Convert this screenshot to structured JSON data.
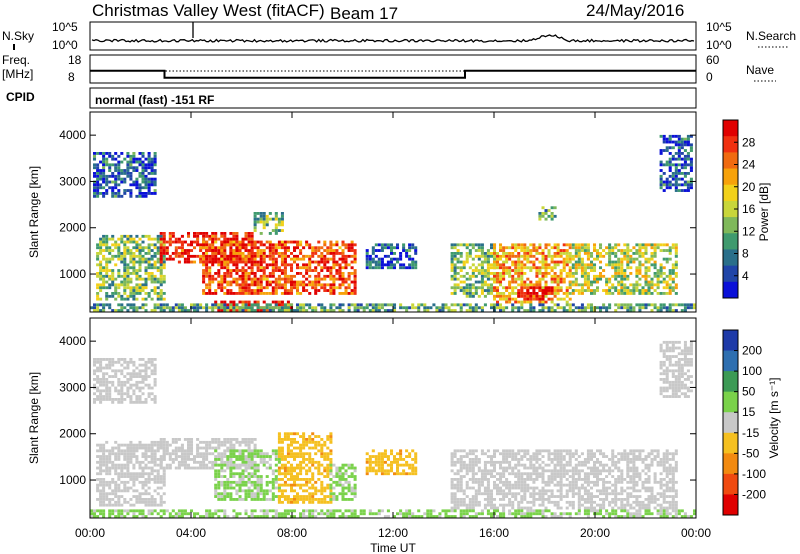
{
  "header": {
    "title": "Christmas Valley West (fitACF)",
    "beam": "Beam 17",
    "date": "24/May/2016"
  },
  "status_panels": {
    "nsky_label": "N.Sky",
    "nsky_ticks": [
      "10^5",
      "10^0"
    ],
    "nsearch_label": "N.Search",
    "freq_label_line1": "Freq.",
    "freq_label_line2": "[MHz]",
    "freq_ticks": [
      "18",
      "8"
    ],
    "nave_ticks": [
      "60",
      "0"
    ],
    "nave_label": "Nave",
    "cpid_label": "CPID",
    "cpid_text": "normal (fast) -151 RF"
  },
  "chart_data": [
    {
      "type": "heatmap",
      "panel": "power",
      "ylabel": "Slant Range [km]",
      "yticks": [
        1000,
        2000,
        3000,
        4000
      ],
      "ylim": [
        180,
        4500
      ],
      "xlim": [
        0,
        24
      ],
      "colorbar": {
        "label": "Power [dB]",
        "ticks": [
          "28",
          "24",
          "20",
          "16",
          "12",
          "8",
          "4"
        ],
        "colors": [
          "#e00000",
          "#f03010",
          "#f06a10",
          "#f7a20a",
          "#f2d11a",
          "#c8d63a",
          "#7fb85a",
          "#3f9a6e",
          "#2a6f8a",
          "#2045a8",
          "#0a10d8"
        ]
      },
      "regions": [
        {
          "t0": 0.2,
          "t1": 2.6,
          "r0": 2700,
          "r1": 3600,
          "value": 8
        },
        {
          "t0": 0.3,
          "t1": 3.0,
          "r0": 450,
          "r1": 1800,
          "value": 14
        },
        {
          "t0": 2.8,
          "t1": 6.6,
          "r0": 1250,
          "r1": 1900,
          "value": 26
        },
        {
          "t0": 4.5,
          "t1": 10.5,
          "r0": 600,
          "r1": 1700,
          "value": 24
        },
        {
          "t0": 5.0,
          "t1": 8.0,
          "r0": 180,
          "r1": 420,
          "value": 28
        },
        {
          "t0": 6.5,
          "t1": 7.6,
          "r0": 1900,
          "r1": 2300,
          "value": 14
        },
        {
          "t0": 11.0,
          "t1": 12.9,
          "r0": 1150,
          "r1": 1650,
          "value": 8
        },
        {
          "t0": 14.3,
          "t1": 16.0,
          "r0": 500,
          "r1": 1600,
          "value": 14
        },
        {
          "t0": 16.0,
          "t1": 19.0,
          "r0": 400,
          "r1": 1600,
          "value": 20
        },
        {
          "t0": 17.0,
          "t1": 18.3,
          "r0": 450,
          "r1": 700,
          "value": 28
        },
        {
          "t0": 19.0,
          "t1": 23.2,
          "r0": 600,
          "r1": 1600,
          "value": 16
        },
        {
          "t0": 17.8,
          "t1": 18.4,
          "r0": 2200,
          "r1": 2450,
          "value": 12
        },
        {
          "t0": 22.6,
          "t1": 23.8,
          "r0": 2800,
          "r1": 4000,
          "value": 8
        },
        {
          "t0": 0.0,
          "t1": 24.0,
          "r0": 180,
          "r1": 320,
          "value": 12
        }
      ]
    },
    {
      "type": "heatmap",
      "panel": "velocity",
      "ylabel": "Slant Range [km]",
      "yticks": [
        1000,
        2000,
        3000,
        4000
      ],
      "ylim": [
        180,
        4500
      ],
      "xlim": [
        0,
        24
      ],
      "xlabel": "Time UT",
      "xticks": [
        "00:00",
        "04:00",
        "08:00",
        "12:00",
        "16:00",
        "20:00",
        "00:00"
      ],
      "colorbar": {
        "label": "Velocity [m s⁻¹]",
        "ticks": [
          "200",
          "100",
          "50",
          "15",
          "-15",
          "-50",
          "-100",
          "-200"
        ],
        "colors": [
          "#1e3aa8",
          "#2e6fb0",
          "#3c9a55",
          "#7ad24a",
          "#c8c8c8",
          "#f5c020",
          "#f28a10",
          "#f04a10",
          "#e00000"
        ]
      },
      "regions": [
        {
          "t0": 0.2,
          "t1": 2.6,
          "r0": 2700,
          "r1": 3600,
          "value": 0
        },
        {
          "t0": 0.3,
          "t1": 3.0,
          "r0": 450,
          "r1": 1800,
          "value": 0
        },
        {
          "t0": 2.8,
          "t1": 6.6,
          "r0": 1250,
          "r1": 1900,
          "value": 0
        },
        {
          "t0": 5.0,
          "t1": 7.5,
          "r0": 600,
          "r1": 1600,
          "value": 30
        },
        {
          "t0": 7.5,
          "t1": 9.5,
          "r0": 550,
          "r1": 2000,
          "value": -50
        },
        {
          "t0": 9.5,
          "t1": 10.5,
          "r0": 600,
          "r1": 1300,
          "value": 30
        },
        {
          "t0": 11.0,
          "t1": 12.9,
          "r0": 1150,
          "r1": 1650,
          "value": -50
        },
        {
          "t0": 14.3,
          "t1": 23.2,
          "r0": 400,
          "r1": 1600,
          "value": 0
        },
        {
          "t0": 22.6,
          "t1": 23.8,
          "r0": 2800,
          "r1": 4000,
          "value": 0
        },
        {
          "t0": 0.0,
          "t1": 24.0,
          "r0": 180,
          "r1": 320,
          "value": 30
        }
      ]
    },
    {
      "type": "line",
      "panel": "freq",
      "xlim": [
        0,
        24
      ],
      "ylim": [
        8,
        18
      ],
      "x": [
        0,
        2.95,
        2.95,
        14.85,
        14.85,
        24
      ],
      "y": [
        12.4,
        12.4,
        9.9,
        9.9,
        12.4,
        12.4
      ]
    }
  ]
}
